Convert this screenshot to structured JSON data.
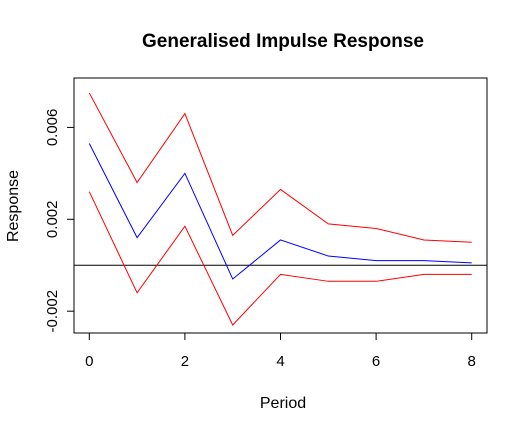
{
  "chart_data": {
    "type": "line",
    "title": "Generalised Impulse Response",
    "xlabel": "Period",
    "ylabel": "Response",
    "x": [
      0,
      1,
      2,
      3,
      4,
      5,
      6,
      7,
      8
    ],
    "xlim": [
      -0.32,
      8.32
    ],
    "ylim": [
      -0.00295,
      0.00815
    ],
    "x_ticks": [
      0,
      2,
      4,
      6,
      8
    ],
    "y_ticks": [
      -0.002,
      0.002,
      0.006
    ],
    "x_tick_labels": [
      "0",
      "2",
      "4",
      "6",
      "8"
    ],
    "y_tick_labels": [
      "-0.002",
      "0.002",
      "0.006"
    ],
    "reference_line": 0,
    "grid": false,
    "legend": "none",
    "series": [
      {
        "role": "upper",
        "color": "#ff0000",
        "values": [
          0.0075,
          0.0036,
          0.0066,
          0.0013,
          0.0033,
          0.0018,
          0.0016,
          0.0011,
          0.001
        ]
      },
      {
        "role": "estimate",
        "color": "#0000ff",
        "values": [
          0.0053,
          0.0012,
          0.004,
          -0.0006,
          0.0011,
          0.0004,
          0.0002,
          0.0002,
          0.0001
        ]
      },
      {
        "role": "lower",
        "color": "#ff0000",
        "values": [
          0.0032,
          -0.0012,
          0.0017,
          -0.0026,
          -0.0004,
          -0.0007,
          -0.0007,
          -0.0004,
          -0.0004
        ]
      }
    ]
  }
}
